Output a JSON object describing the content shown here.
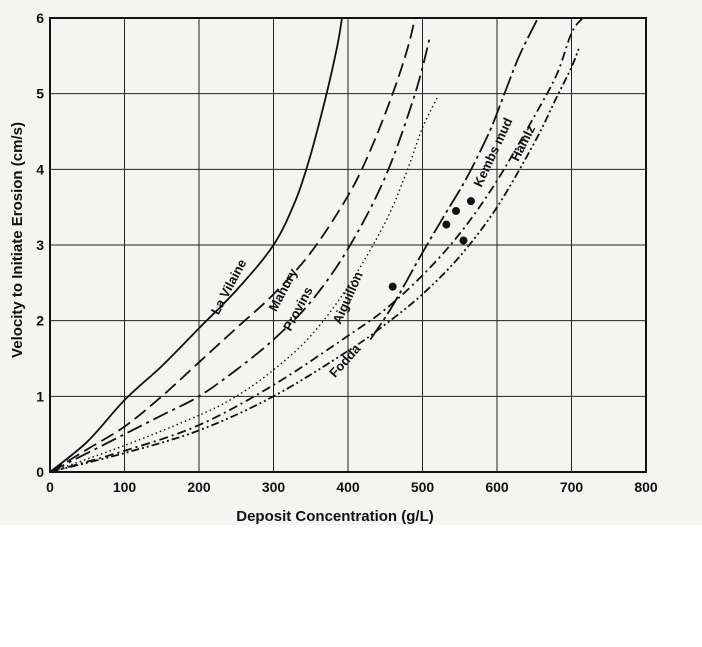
{
  "chart_data": {
    "type": "line",
    "title": "",
    "xlabel": "Deposit Concentration (g/L)",
    "ylabel": "Velocity to Initiate Erosion (cm/s)",
    "xlim": [
      0,
      800
    ],
    "ylim": [
      0,
      6
    ],
    "xticks": [
      "0",
      "100",
      "200",
      "300",
      "400",
      "500",
      "600",
      "700",
      "800"
    ],
    "yticks": [
      "0",
      "1",
      "2",
      "3",
      "4",
      "5",
      "6"
    ],
    "grid": true,
    "series": [
      {
        "name": "La Vilaine",
        "style": "solid",
        "points": [
          [
            0,
            0
          ],
          [
            50,
            0.4
          ],
          [
            100,
            0.95
          ],
          [
            150,
            1.4
          ],
          [
            200,
            1.9
          ],
          [
            250,
            2.4
          ],
          [
            300,
            3.0
          ],
          [
            330,
            3.6
          ],
          [
            350,
            4.2
          ],
          [
            370,
            4.95
          ],
          [
            385,
            5.6
          ],
          [
            392,
            6.0
          ]
        ]
      },
      {
        "name": "Mahury",
        "style": "long-dash",
        "points": [
          [
            0,
            0
          ],
          [
            50,
            0.3
          ],
          [
            100,
            0.6
          ],
          [
            150,
            1.0
          ],
          [
            200,
            1.45
          ],
          [
            250,
            1.9
          ],
          [
            300,
            2.35
          ],
          [
            350,
            2.9
          ],
          [
            400,
            3.65
          ],
          [
            430,
            4.25
          ],
          [
            460,
            5.0
          ],
          [
            480,
            5.6
          ],
          [
            490,
            6.0
          ]
        ]
      },
      {
        "name": "Provins",
        "style": "dash-dot-long",
        "points": [
          [
            0,
            0
          ],
          [
            50,
            0.25
          ],
          [
            100,
            0.5
          ],
          [
            150,
            0.75
          ],
          [
            200,
            1.0
          ],
          [
            250,
            1.35
          ],
          [
            300,
            1.75
          ],
          [
            350,
            2.25
          ],
          [
            400,
            2.95
          ],
          [
            450,
            3.9
          ],
          [
            490,
            5.0
          ],
          [
            510,
            5.75
          ]
        ]
      },
      {
        "name": "Aiguillon",
        "style": "dotted",
        "points": [
          [
            0,
            0
          ],
          [
            100,
            0.35
          ],
          [
            200,
            0.75
          ],
          [
            250,
            1.0
          ],
          [
            300,
            1.35
          ],
          [
            350,
            1.8
          ],
          [
            400,
            2.45
          ],
          [
            450,
            3.3
          ],
          [
            480,
            4.0
          ],
          [
            500,
            4.55
          ],
          [
            520,
            4.95
          ]
        ]
      },
      {
        "name": "Kembs mud",
        "style": "long-dash-dot",
        "points": [
          [
            430,
            1.75
          ],
          [
            460,
            2.2
          ],
          [
            500,
            2.9
          ],
          [
            530,
            3.4
          ],
          [
            560,
            3.9
          ],
          [
            590,
            4.5
          ],
          [
            610,
            5.0
          ],
          [
            630,
            5.5
          ],
          [
            655,
            6.0
          ]
        ]
      },
      {
        "name": "Hamiz",
        "style": "dash-dot",
        "points": [
          [
            0,
            0
          ],
          [
            100,
            0.28
          ],
          [
            200,
            0.62
          ],
          [
            300,
            1.15
          ],
          [
            400,
            1.8
          ],
          [
            450,
            2.15
          ],
          [
            500,
            2.6
          ],
          [
            550,
            3.15
          ],
          [
            600,
            3.85
          ],
          [
            650,
            4.7
          ],
          [
            680,
            5.25
          ],
          [
            700,
            5.8
          ],
          [
            715,
            6.0
          ]
        ]
      },
      {
        "name": "Fodda",
        "style": "dash-dot-dot",
        "points": [
          [
            0,
            0
          ],
          [
            100,
            0.25
          ],
          [
            200,
            0.55
          ],
          [
            300,
            1.0
          ],
          [
            400,
            1.6
          ],
          [
            450,
            1.95
          ],
          [
            500,
            2.35
          ],
          [
            550,
            2.85
          ],
          [
            600,
            3.5
          ],
          [
            650,
            4.35
          ],
          [
            680,
            4.95
          ],
          [
            700,
            5.35
          ],
          [
            710,
            5.6
          ]
        ]
      }
    ],
    "markers": [
      [
        460,
        2.45
      ],
      [
        532,
        3.27
      ],
      [
        545,
        3.45
      ],
      [
        565,
        3.58
      ],
      [
        555,
        3.06
      ]
    ]
  }
}
